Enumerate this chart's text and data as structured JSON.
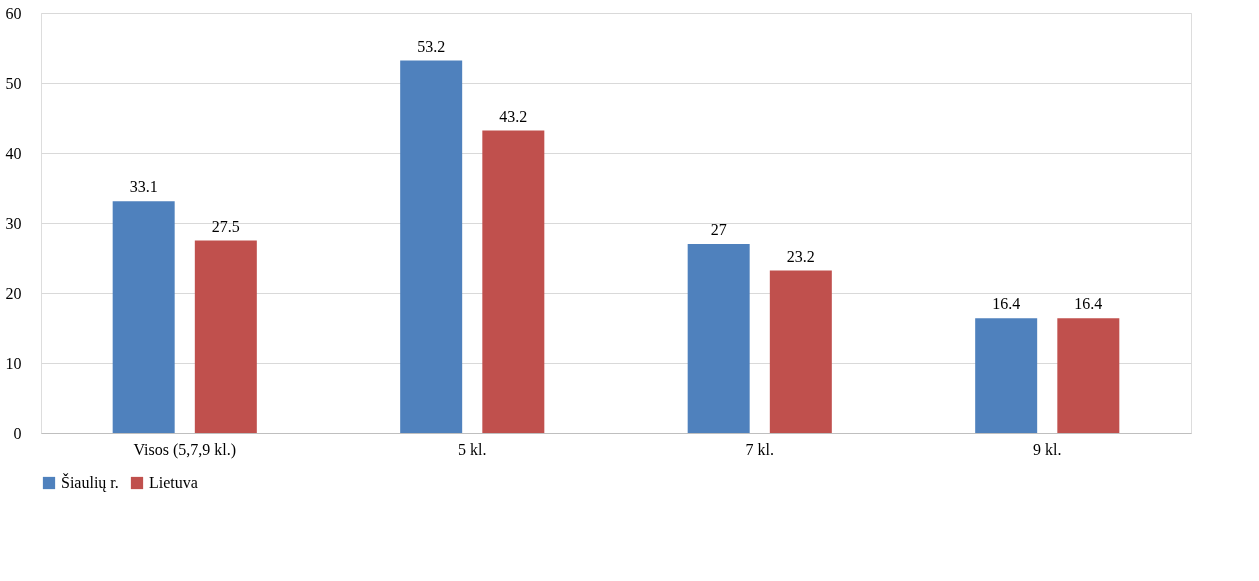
{
  "chart_data": {
    "type": "bar",
    "categories": [
      "Visos (5,7,9 kl.)",
      "5 kl.",
      "7 kl.",
      "9 kl."
    ],
    "series": [
      {
        "name": "Šiaulių r.",
        "color": "#4f81bd",
        "values": [
          33.1,
          53.2,
          27,
          16.4
        ]
      },
      {
        "name": "Lietuva",
        "color": "#c0504d",
        "values": [
          27.5,
          43.2,
          23.2,
          16.4
        ]
      }
    ],
    "ylim": [
      0,
      60
    ],
    "yticks": [
      0,
      10,
      20,
      30,
      40,
      50,
      60
    ],
    "grid": "y",
    "legend": "bottom",
    "data_labels": true
  }
}
